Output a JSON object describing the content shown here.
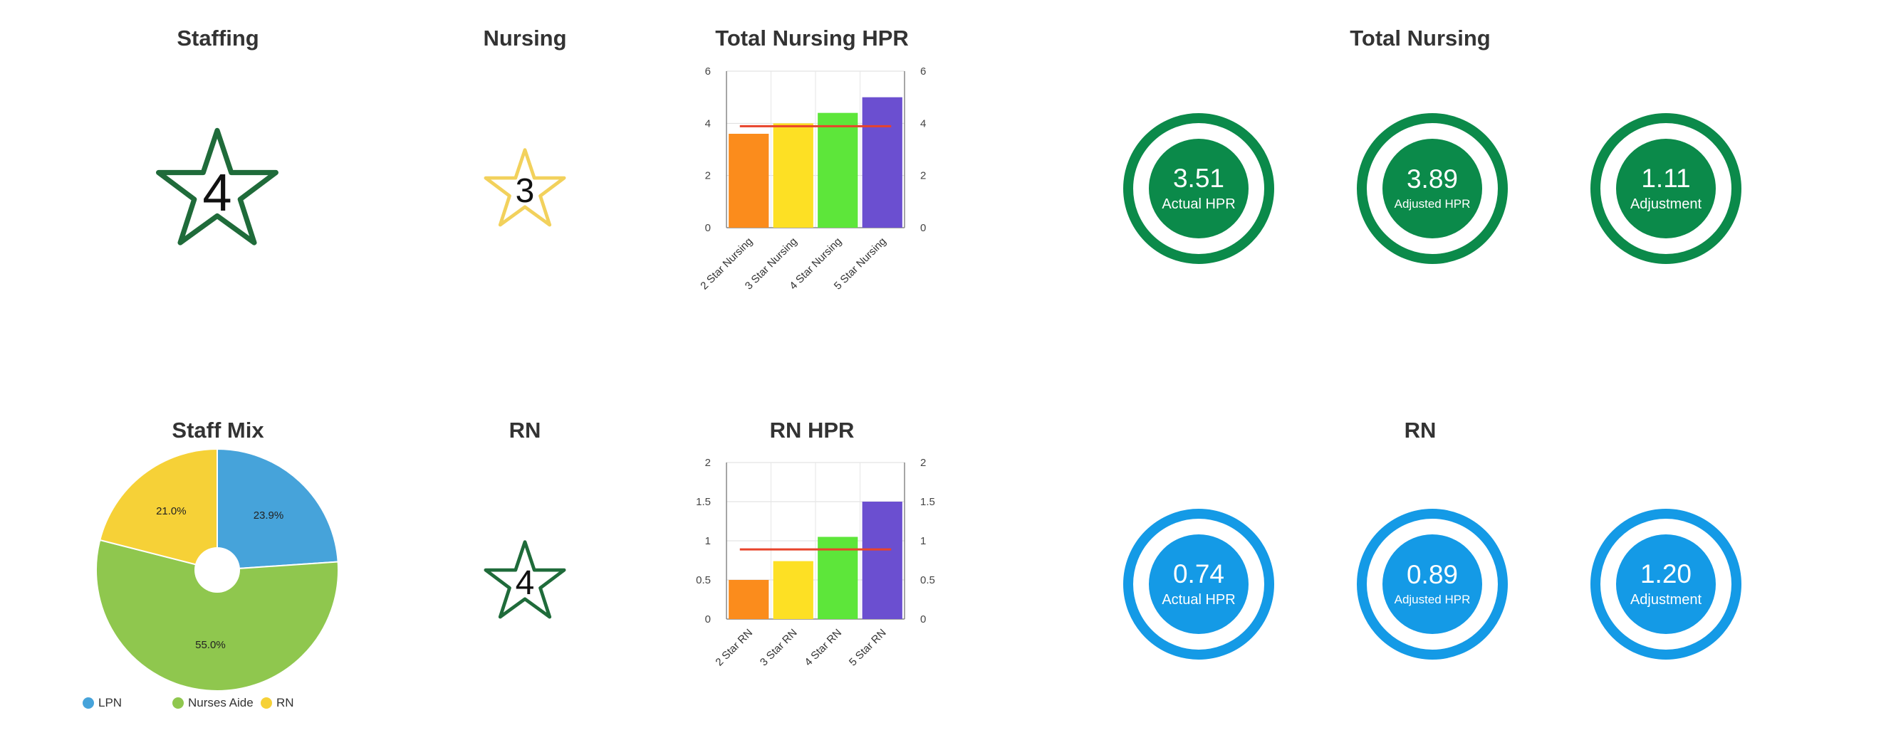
{
  "titles": {
    "staffing": "Staffing",
    "nursing": "Nursing",
    "total_nursing_hpr": "Total Nursing HPR",
    "total_nursing": "Total Nursing",
    "staff_mix": "Staff Mix",
    "rn": "RN",
    "rn_hpr": "RN HPR",
    "rn_rings": "RN"
  },
  "stars": {
    "staffing": {
      "rating": "4",
      "color": "#1f6b3a"
    },
    "nursing": {
      "rating": "3",
      "color": "#f2d15c"
    },
    "rn": {
      "rating": "4",
      "color": "#1f6b3a"
    }
  },
  "rings": {
    "total_nursing": {
      "color": "#0b8a4a",
      "items": [
        {
          "value": "3.51",
          "label": "Actual HPR"
        },
        {
          "value": "3.89",
          "label": "Adjusted HPR"
        },
        {
          "value": "1.11",
          "label": "Adjustment"
        }
      ]
    },
    "rn": {
      "color": "#149ae6",
      "items": [
        {
          "value": "0.74",
          "label": "Actual HPR"
        },
        {
          "value": "0.89",
          "label": "Adjusted HPR"
        },
        {
          "value": "1.20",
          "label": "Adjustment"
        }
      ]
    }
  },
  "chart_data": [
    {
      "type": "bar",
      "categories": [
        "2 Star Nursing",
        "3 Star Nursing",
        "4 Star Nursing",
        "5 Star Nursing"
      ],
      "values": [
        3.6,
        4.0,
        4.4,
        5.0
      ],
      "colors": [
        "#fb8c1c",
        "#fde024",
        "#5de63a",
        "#6b4fd0"
      ],
      "reference_line": 3.89,
      "reference_color": "#e8432b",
      "ylim": [
        0,
        6
      ],
      "yticks": [
        "0",
        "2",
        "4",
        "6"
      ],
      "secondary_yticks": [
        "0",
        "2",
        "4",
        "6"
      ],
      "grid": true
    },
    {
      "type": "bar",
      "categories": [
        "2 Star RN",
        "3 Star RN",
        "4 Star RN",
        "5 Star RN"
      ],
      "values": [
        0.5,
        0.74,
        1.05,
        1.5
      ],
      "colors": [
        "#fb8c1c",
        "#fde024",
        "#5de63a",
        "#6b4fd0"
      ],
      "reference_line": 0.89,
      "reference_color": "#e8432b",
      "ylim": [
        0,
        2
      ],
      "yticks": [
        "0",
        "0.5",
        "1",
        "1.5",
        "2"
      ],
      "secondary_yticks": [
        "0",
        "0.5",
        "1",
        "1.5",
        "2"
      ],
      "grid": true
    },
    {
      "type": "pie",
      "labels": [
        "LPN",
        "Nurses Aide",
        "RN"
      ],
      "values": [
        23.9,
        55.0,
        21.0
      ],
      "value_labels": [
        "23.9%",
        "55.0%",
        "21.0%"
      ],
      "colors": [
        "#46a3da",
        "#8fc74e",
        "#f6d137"
      ],
      "legend": "bottom-left"
    }
  ]
}
